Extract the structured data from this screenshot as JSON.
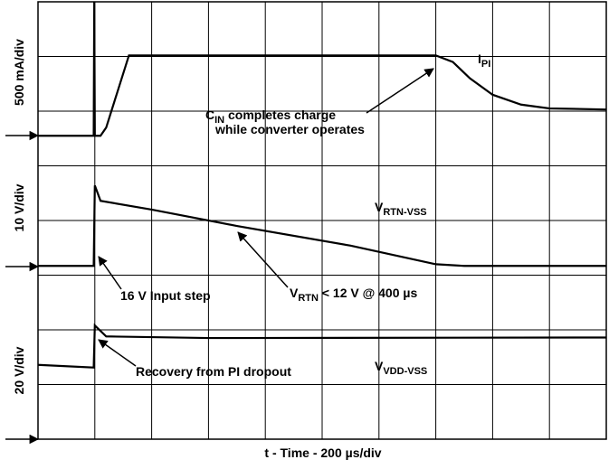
{
  "chart_data": {
    "type": "line",
    "xlabel": "t - Time - 200 µs/div",
    "ylabels": [
      "500 mA/div",
      "10 V/div",
      "20 V/div"
    ],
    "xlim": [
      0,
      10
    ],
    "ylim": [
      0,
      8
    ],
    "xticks": [
      0,
      1,
      2,
      3,
      4,
      5,
      6,
      7,
      8,
      9,
      10
    ],
    "yticks": [
      0,
      1,
      2,
      3,
      4,
      5,
      6,
      7,
      8
    ],
    "grid": true,
    "color": "#000000",
    "series": [
      {
        "x": [
          0,
          0.98,
          0.99,
          1.0,
          1.1,
          1.2,
          1.6,
          7.0,
          7.3,
          7.6,
          8.0,
          8.5,
          9.0,
          10
        ],
        "values": [
          5.55,
          5.55,
          8,
          5.55,
          5.55,
          5.7,
          7.02,
          7.02,
          6.9,
          6.6,
          6.3,
          6.12,
          6.05,
          6.03
        ]
      },
      {
        "x": [
          0,
          0.98,
          1.0,
          1.1,
          2.0,
          3.5,
          5.5,
          7.0,
          7.5,
          10
        ],
        "values": [
          3.17,
          3.17,
          4.64,
          4.36,
          4.2,
          3.9,
          3.54,
          3.2,
          3.17,
          3.17
        ]
      },
      {
        "x": [
          0,
          0.98,
          1.0,
          1.2,
          3.0,
          10
        ],
        "values": [
          1.36,
          1.31,
          2.08,
          1.88,
          1.85,
          1.86
        ]
      }
    ],
    "annotations": [
      {
        "text": "C",
        "sub": "IN",
        "rest": " completes charge"
      },
      {
        "text": "while converter operates"
      },
      {
        "text": "I",
        "sub": "PI"
      },
      {
        "text": "V",
        "sub": "RTN-VSS"
      },
      {
        "text": "16 V Input step"
      },
      {
        "text": "V",
        "sub": "RTN",
        "rest": " < 12 V @ 400 µs"
      },
      {
        "text": "Recovery from PI dropout"
      },
      {
        "text": "V",
        "sub": "VDD-VSS"
      }
    ]
  }
}
